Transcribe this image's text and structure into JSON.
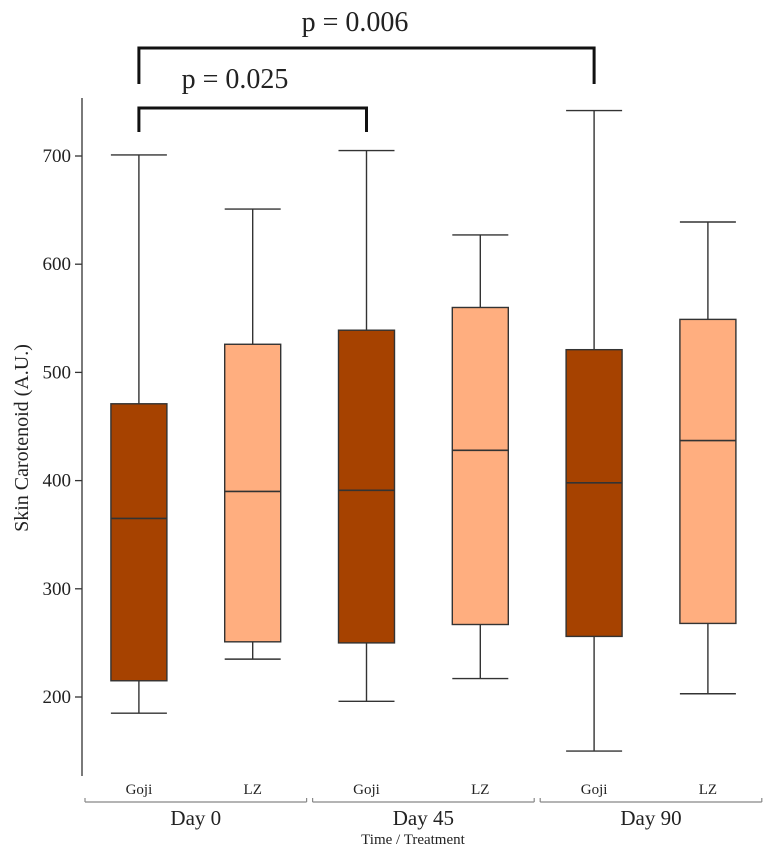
{
  "chart_data": {
    "type": "boxplot",
    "title": "",
    "ylabel": "Skin Carotenoid (A.U.)",
    "xlabel": "Time / Treatment",
    "ylim": [
      130,
      750
    ],
    "yticks": [
      200,
      300,
      400,
      500,
      600,
      700
    ],
    "ytick_labels": [
      "200",
      "300",
      "400",
      "500",
      "600",
      "700"
    ],
    "colors": {
      "Goji": "#A64200",
      "LZ": "#FFAE7F",
      "stroke": "#333333",
      "bracket": "#111111"
    },
    "groups": [
      {
        "label": "Day 0"
      },
      {
        "label": "Day 45"
      },
      {
        "label": "Day 90"
      }
    ],
    "boxes": [
      {
        "group": 0,
        "treatment": "Goji",
        "min": 185,
        "q1": 215,
        "median": 365,
        "q3": 471,
        "max": 701
      },
      {
        "group": 0,
        "treatment": "LZ",
        "min": 235,
        "q1": 251,
        "median": 390,
        "q3": 526,
        "max": 651
      },
      {
        "group": 1,
        "treatment": "Goji",
        "min": 196,
        "q1": 250,
        "median": 391,
        "q3": 539,
        "max": 705
      },
      {
        "group": 1,
        "treatment": "LZ",
        "min": 217,
        "q1": 267,
        "median": 428,
        "q3": 560,
        "max": 627
      },
      {
        "group": 2,
        "treatment": "Goji",
        "min": 150,
        "q1": 256,
        "median": 398,
        "q3": 521,
        "max": 742
      },
      {
        "group": 2,
        "treatment": "LZ",
        "min": 203,
        "q1": 268,
        "median": 437,
        "q3": 549,
        "max": 639
      }
    ],
    "annotations": [
      {
        "from_box": 0,
        "to_box": 2,
        "label": "p = 0.025"
      },
      {
        "from_box": 0,
        "to_box": 4,
        "label": "p = 0.006"
      }
    ]
  }
}
